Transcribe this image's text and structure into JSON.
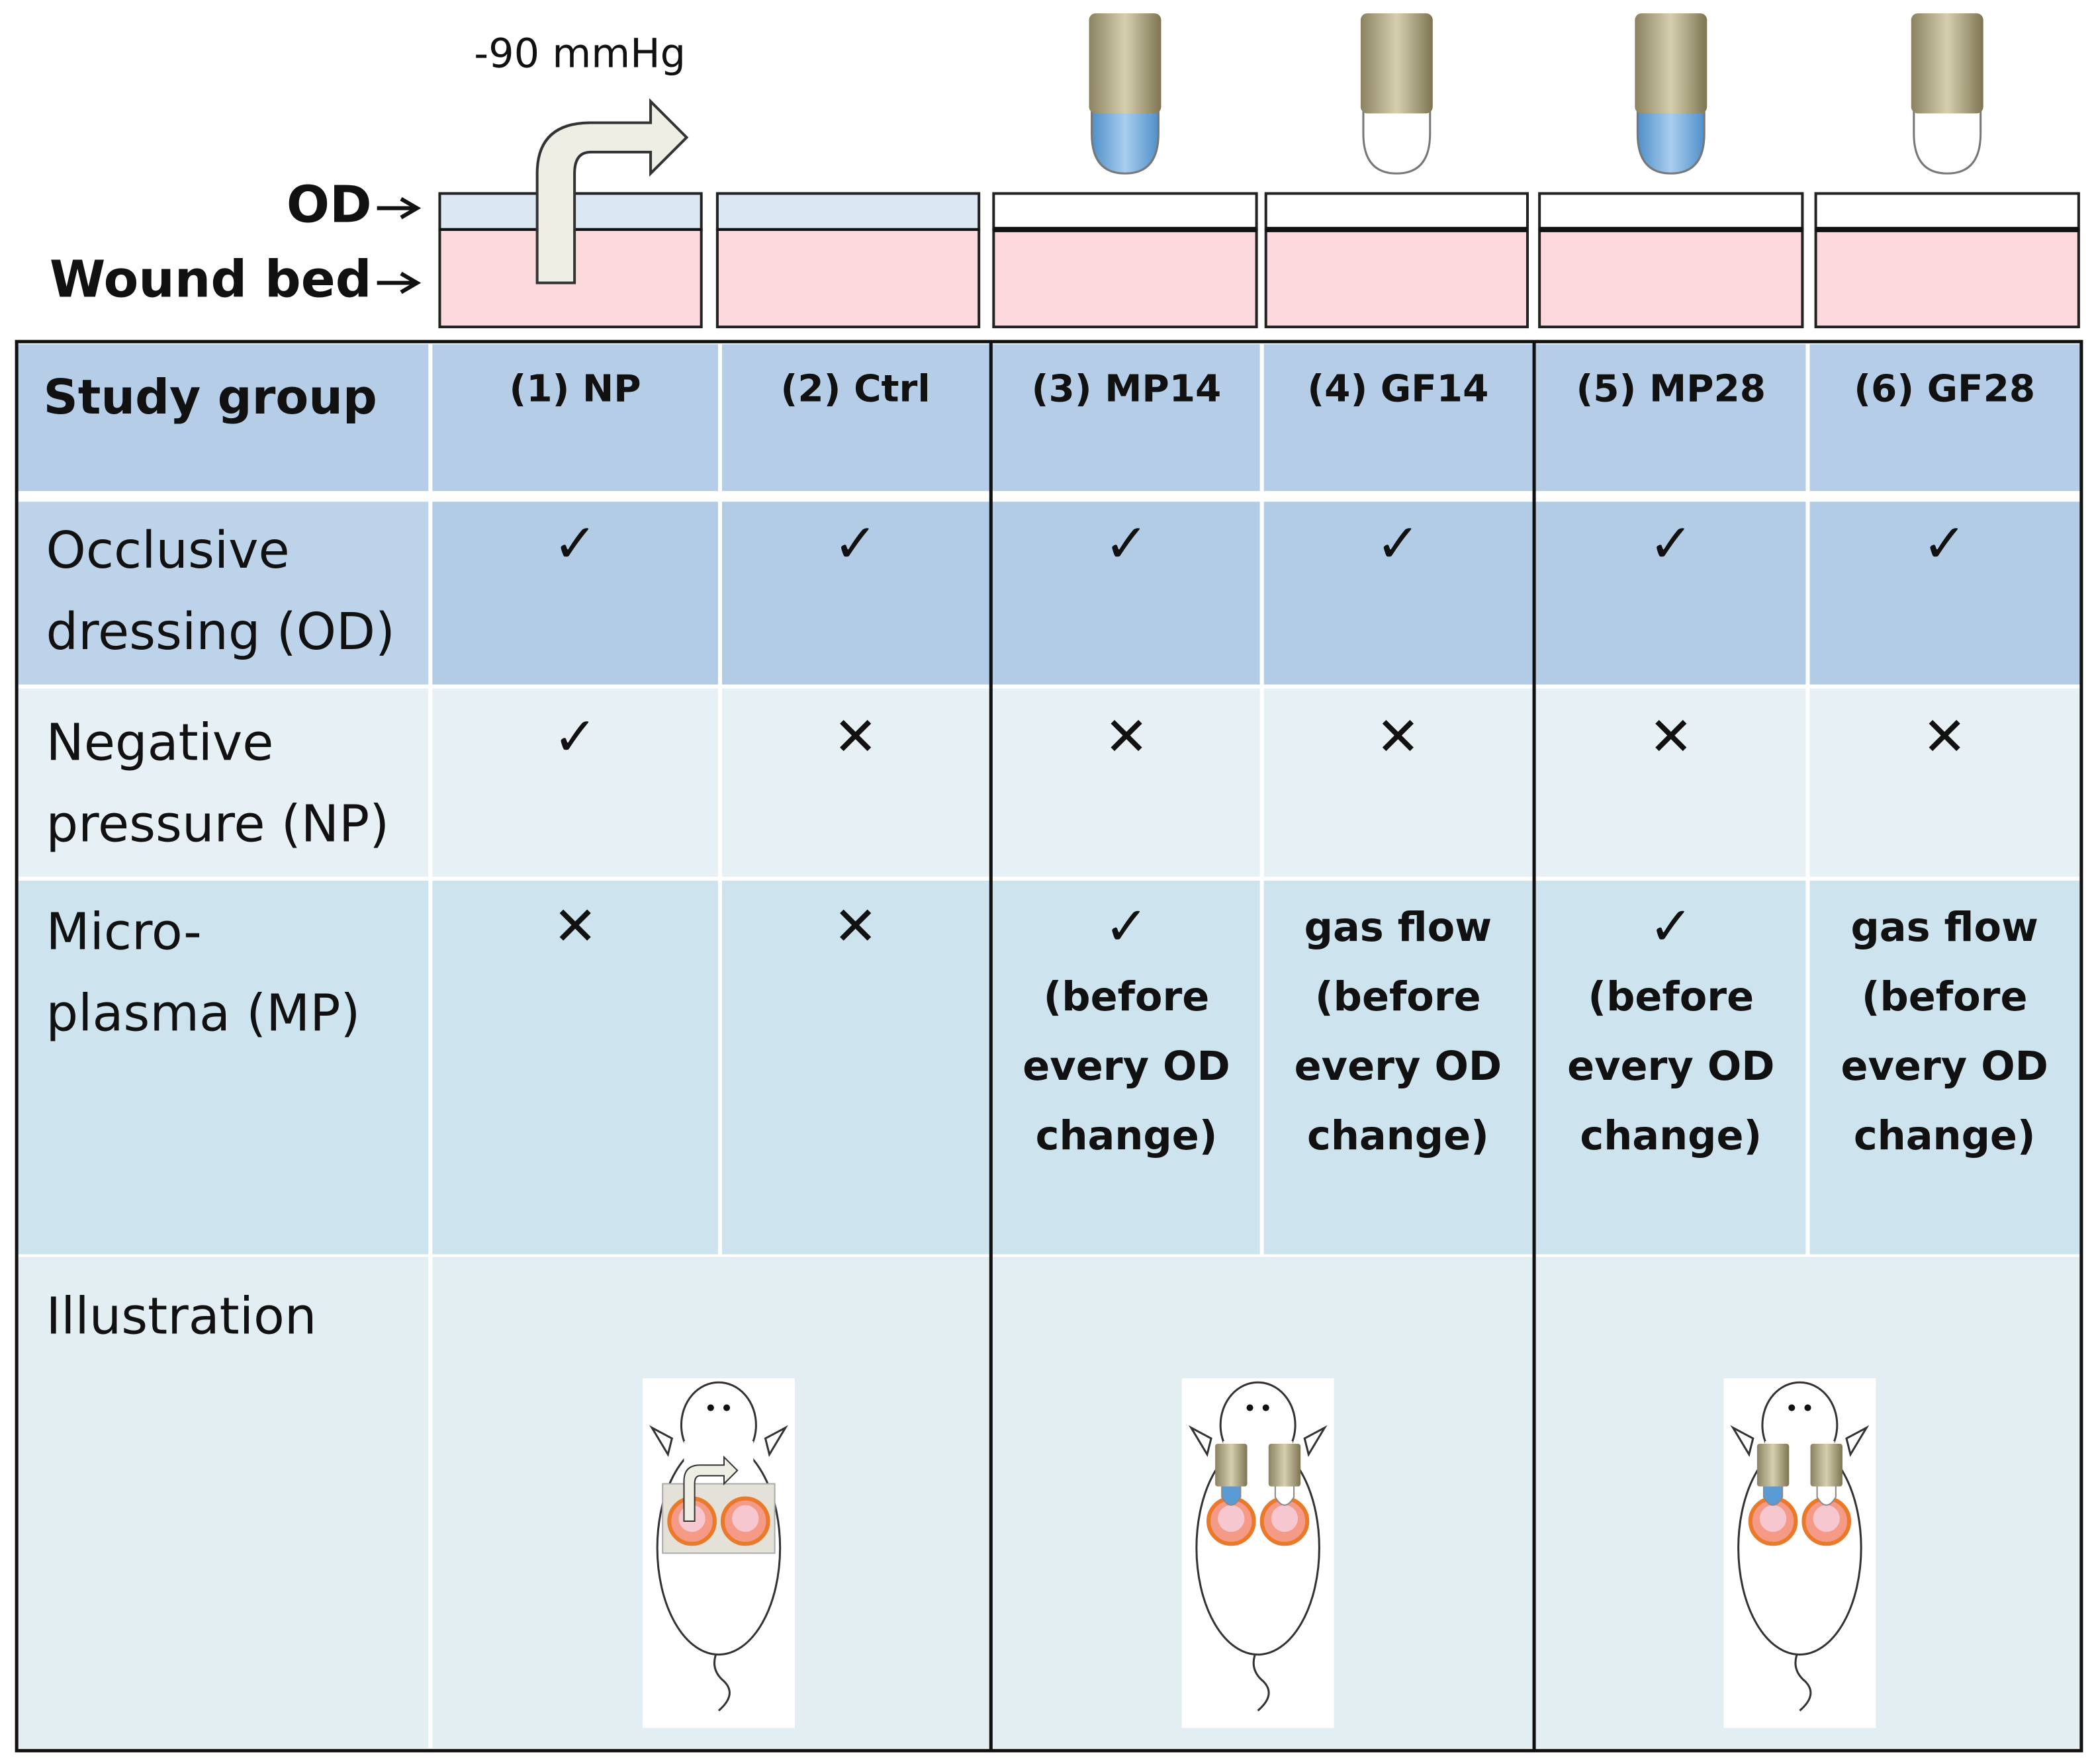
{
  "diagram": {
    "pressure_label": "-90 mmHg",
    "layer_labels": [
      "OD",
      "Wound bed"
    ]
  },
  "table": {
    "header": [
      "Study group",
      "(1) NP",
      "(2) Ctrl",
      "(3) MP14",
      "(4) GF14",
      "(5) MP28",
      "(6) GF28"
    ],
    "rows": [
      [
        [
          "Occlusive",
          "dressing (OD)"
        ],
        [
          "✓"
        ],
        [
          "✓"
        ],
        [
          "✓"
        ],
        [
          "✓"
        ],
        [
          "✓"
        ],
        [
          "✓"
        ]
      ],
      [
        [
          "Negative",
          "pressure (NP)"
        ],
        [
          "✓"
        ],
        [
          "✕"
        ],
        [
          "✕"
        ],
        [
          "✕"
        ],
        [
          "✕"
        ],
        [
          "✕"
        ]
      ],
      [
        [
          "Micro-",
          "plasma (MP)"
        ],
        [
          "✕"
        ],
        [
          "✕"
        ],
        [
          "✓",
          "(before",
          "every OD",
          "change)"
        ],
        [
          "gas flow",
          "(before",
          "every OD",
          "change)"
        ],
        [
          "✓",
          "(before",
          "every OD",
          "change)"
        ],
        [
          "gas flow",
          "(before",
          "every OD",
          "change)"
        ]
      ],
      [
        [
          "Illustration"
        ]
      ]
    ]
  }
}
